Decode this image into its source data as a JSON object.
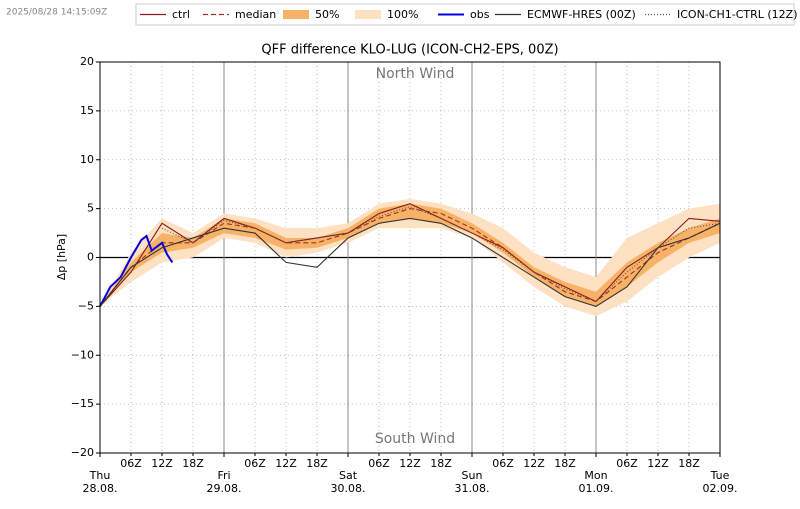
{
  "timestamp": "2025/08/28 14:15:09Z",
  "chart_data": {
    "type": "line",
    "title": "QFF difference KLO-LUG (ICON-CH2-EPS, 00Z)",
    "y_label": "Δp [hPa]",
    "annotations": [
      "North Wind",
      "South Wind"
    ],
    "xlim": [
      0,
      120
    ],
    "xticks": [
      {
        "value": 0,
        "label": "Thu\n28.08."
      },
      {
        "value": 24,
        "label": "Fri\n29.08."
      },
      {
        "value": 48,
        "label": "Sat\n30.08."
      },
      {
        "value": 72,
        "label": "Sun\n31.08."
      },
      {
        "value": 96,
        "label": "Mon\n01.09."
      },
      {
        "value": 120,
        "label": "Tue\n02.09."
      }
    ],
    "xticks_minor": [
      {
        "value": 6,
        "label": "06Z"
      },
      {
        "value": 12,
        "label": "12Z"
      },
      {
        "value": 18,
        "label": "18Z"
      },
      {
        "value": 30,
        "label": "06Z"
      },
      {
        "value": 36,
        "label": "12Z"
      },
      {
        "value": 42,
        "label": "18Z"
      },
      {
        "value": 54,
        "label": "06Z"
      },
      {
        "value": 60,
        "label": "12Z"
      },
      {
        "value": 66,
        "label": "18Z"
      },
      {
        "value": 78,
        "label": "06Z"
      },
      {
        "value": 84,
        "label": "12Z"
      },
      {
        "value": 90,
        "label": "18Z"
      },
      {
        "value": 102,
        "label": "06Z"
      },
      {
        "value": 108,
        "label": "12Z"
      },
      {
        "value": 114,
        "label": "18Z"
      }
    ],
    "ylim": [
      -20,
      20
    ],
    "yticks": [
      {
        "value": -20,
        "label": "−20"
      },
      {
        "value": -15,
        "label": "−15"
      },
      {
        "value": -10,
        "label": "−10"
      },
      {
        "value": -5,
        "label": "−5"
      },
      0,
      5,
      10,
      15,
      20
    ],
    "grid": true,
    "x": [
      0,
      6,
      12,
      18,
      24,
      30,
      36,
      42,
      48,
      54,
      60,
      66,
      72,
      78,
      84,
      90,
      96,
      102,
      108,
      114,
      120
    ],
    "series": [
      {
        "name": "ctrl",
        "color": "#8b1a1a",
        "style": "solid",
        "values": [
          -5,
          -1.5,
          3.5,
          1.5,
          4,
          3,
          1.5,
          2,
          2.5,
          4.5,
          5.5,
          4,
          2.5,
          1,
          -1.5,
          -3,
          -4.5,
          -1,
          1,
          4,
          3.7
        ]
      },
      {
        "name": "median",
        "color": "#a0301e",
        "style": "dashed",
        "values": [
          -5,
          -1,
          1.5,
          1.5,
          3.5,
          3,
          1.5,
          1.5,
          2.5,
          4,
          5,
          4.5,
          3,
          1,
          -1.5,
          -3.5,
          -4.5,
          -2,
          0.5,
          2,
          3.5
        ]
      },
      {
        "name": "50%",
        "color": "#f7b267",
        "style": "band",
        "low": [
          -5,
          -1.5,
          0.5,
          1,
          2.5,
          2,
          0.8,
          1,
          2,
          3.5,
          4,
          3.5,
          2.5,
          0.5,
          -2,
          -4,
          -5,
          -3,
          -0.5,
          1.5,
          2.5
        ],
        "high": [
          -5,
          -0.5,
          2.5,
          2,
          4,
          3.5,
          2,
          2,
          3,
          5,
          5.5,
          5,
          3.5,
          1.5,
          -1,
          -2.5,
          -3.5,
          -0.5,
          1.5,
          3,
          4
        ]
      },
      {
        "name": "100%",
        "color": "#fde1c2",
        "style": "band",
        "low": [
          -5,
          -2.5,
          -0.5,
          0,
          2,
          1.5,
          0,
          0.5,
          1.5,
          3,
          3,
          3,
          2,
          -0.5,
          -3,
          -5,
          -6,
          -4.5,
          -2,
          0,
          1.5
        ],
        "high": [
          -5,
          0.5,
          4,
          2.5,
          4.5,
          4,
          3,
          3,
          3.5,
          5.5,
          6,
          5.5,
          4.5,
          3,
          0.5,
          -1,
          -2,
          2,
          3.5,
          5,
          5.5
        ]
      },
      {
        "name": "obs",
        "color": "#0000dd",
        "style": "solid",
        "x": [
          0,
          2,
          4,
          6,
          8,
          9,
          10,
          12,
          13,
          14
        ],
        "values": [
          -5,
          -3,
          -2,
          0,
          1.8,
          2.2,
          0.7,
          1.5,
          0.3,
          -0.5
        ]
      },
      {
        "name": "ECMWF-HRES (00Z)",
        "color": "#333333",
        "style": "solid",
        "values": [
          -5,
          -1,
          1,
          2,
          3,
          2.5,
          -0.5,
          -1,
          2,
          3.5,
          4,
          3.5,
          2,
          0,
          -2,
          -4,
          -5,
          -3,
          1,
          2,
          3.5
        ]
      },
      {
        "name": "ICON-CH1-CTRL (12Z)",
        "color": "#555555",
        "style": "dotted",
        "values": [
          null,
          null,
          3,
          1.5,
          3.8,
          3,
          1.5,
          2,
          2.5,
          4.2,
          5.2,
          4,
          2.5,
          0.8,
          -1.5,
          -3.2,
          -4.5,
          -1.5,
          1,
          3,
          3.5
        ]
      }
    ]
  }
}
